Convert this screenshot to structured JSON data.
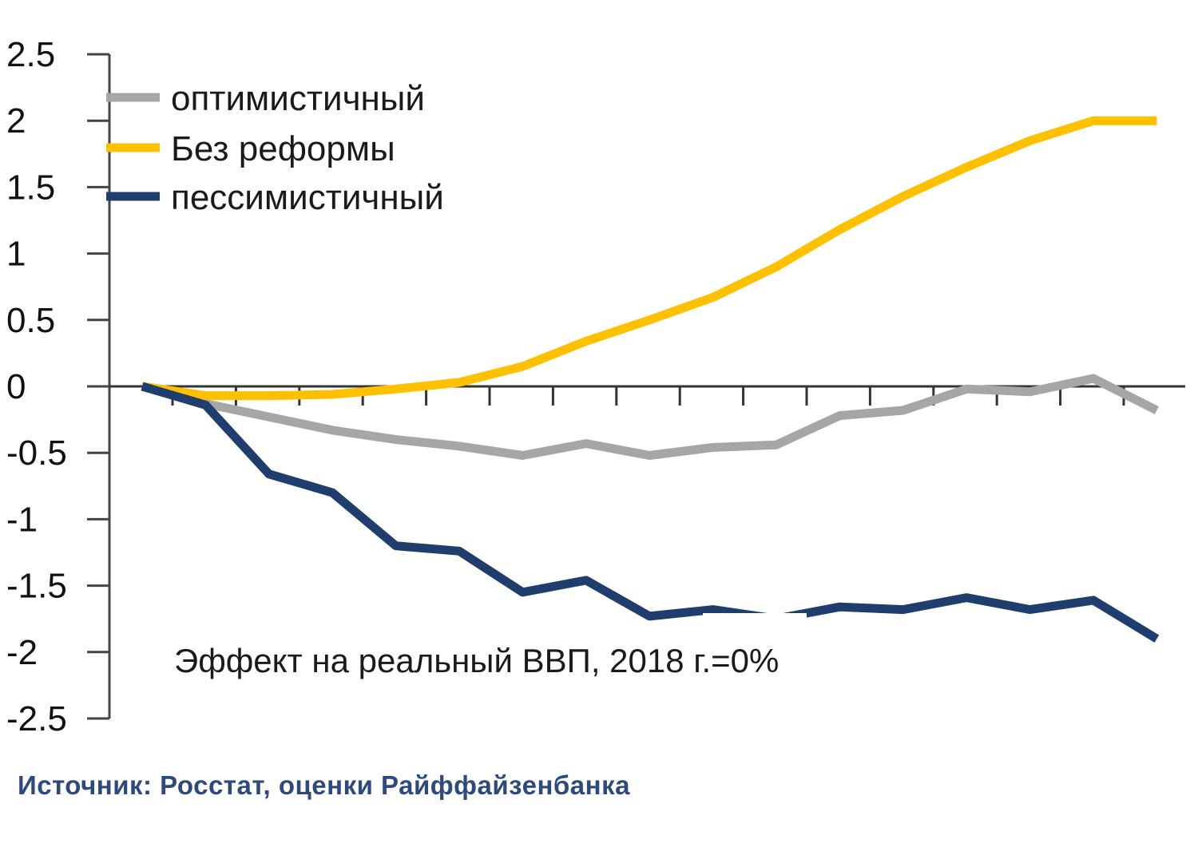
{
  "chart_data": {
    "type": "line",
    "title": "",
    "xlabel": "",
    "ylabel": "",
    "ylim": [
      -2.5,
      2.5
    ],
    "yticks": [
      "2.5",
      "2",
      "1.5",
      "1",
      "0.5",
      "0",
      "-0.5",
      "-1",
      "-1.5",
      "-2",
      "-2.5"
    ],
    "ytick_values": [
      2.5,
      2,
      1.5,
      1,
      0.5,
      0,
      -0.5,
      -1,
      -1.5,
      -2,
      -2.5
    ],
    "x": [
      0,
      1,
      2,
      3,
      4,
      5,
      6,
      7,
      8,
      9,
      10,
      11,
      12,
      13,
      14,
      15,
      16
    ],
    "grid": false,
    "legend_position": "top-left",
    "annotation": "Эффект на реальный ВВП, 2018 г.=0%",
    "series": [
      {
        "name": "оптимистичный",
        "color": "#a6a6a6",
        "values": [
          0,
          -0.13,
          -0.23,
          -0.33,
          -0.4,
          -0.45,
          -0.52,
          -0.43,
          -0.52,
          -0.46,
          -0.44,
          -0.22,
          -0.18,
          -0.02,
          -0.04,
          0.06,
          -0.18
        ]
      },
      {
        "name": "Без реформы",
        "color": "#ffc000",
        "values": [
          0,
          -0.07,
          -0.07,
          -0.06,
          -0.02,
          0.03,
          0.15,
          0.34,
          0.5,
          0.67,
          0.9,
          1.18,
          1.43,
          1.65,
          1.85,
          2,
          2
        ]
      },
      {
        "name": "пессимистичный",
        "color": "#1f3e6e",
        "values": [
          0,
          -0.14,
          -0.66,
          -0.8,
          -1.2,
          -1.24,
          -1.55,
          -1.46,
          -1.73,
          -1.68,
          -1.75,
          -1.66,
          -1.68,
          -1.59,
          -1.68,
          -1.61,
          -1.9
        ]
      }
    ]
  },
  "source": "Источник: Росстат, оценки Райффайзенбанка"
}
